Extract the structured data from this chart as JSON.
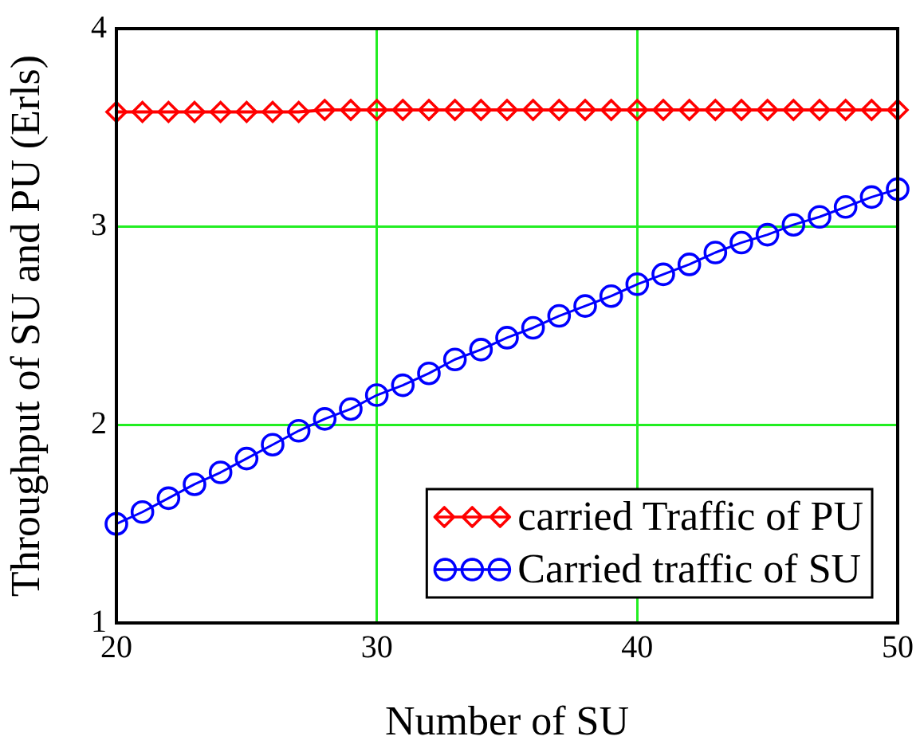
{
  "chart_data": {
    "type": "line",
    "xlabel": "Number of SU",
    "ylabel": "Throughput of SU and PU (Erls)",
    "x": [
      20,
      21,
      22,
      23,
      24,
      25,
      26,
      27,
      28,
      29,
      30,
      31,
      32,
      33,
      34,
      35,
      36,
      37,
      38,
      39,
      40,
      41,
      42,
      43,
      44,
      45,
      46,
      47,
      48,
      49,
      50
    ],
    "series": [
      {
        "name": "carried Traffic of PU",
        "color": "#ff0000",
        "marker": "diamond",
        "values": [
          3.58,
          3.58,
          3.58,
          3.58,
          3.58,
          3.58,
          3.58,
          3.58,
          3.59,
          3.59,
          3.59,
          3.59,
          3.59,
          3.59,
          3.59,
          3.59,
          3.59,
          3.59,
          3.59,
          3.59,
          3.59,
          3.59,
          3.59,
          3.59,
          3.59,
          3.59,
          3.59,
          3.59,
          3.59,
          3.59,
          3.59
        ]
      },
      {
        "name": "Carried traffic of SU",
        "color": "#0000ff",
        "marker": "circle",
        "values": [
          1.5,
          1.56,
          1.63,
          1.7,
          1.76,
          1.83,
          1.9,
          1.97,
          2.03,
          2.08,
          2.15,
          2.2,
          2.26,
          2.33,
          2.38,
          2.44,
          2.49,
          2.55,
          2.6,
          2.65,
          2.71,
          2.76,
          2.81,
          2.87,
          2.92,
          2.96,
          3.01,
          3.05,
          3.1,
          3.15,
          3.19
        ]
      }
    ],
    "xlim": [
      20,
      50
    ],
    "xticks": [
      20,
      30,
      40,
      50
    ],
    "ylim": [
      1,
      4
    ],
    "yticks": [
      1,
      2,
      3,
      4
    ],
    "grid": true,
    "legend": "bottom right",
    "line_style": "solid"
  }
}
